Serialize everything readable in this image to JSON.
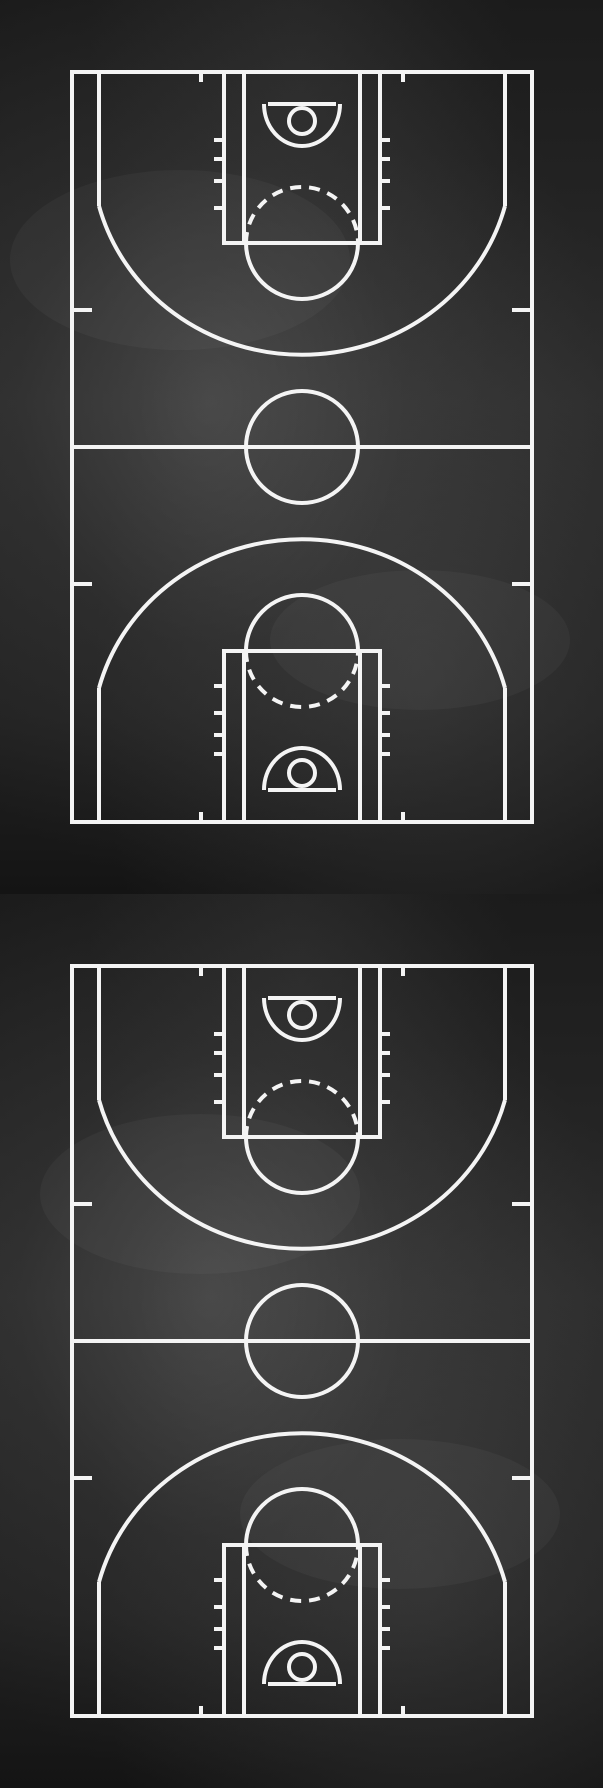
{
  "colors": {
    "chalkboard": "#2b2b2b",
    "chalk_line": "#f4f4f4"
  },
  "panels": [
    {
      "name": "court-panel-top",
      "icon": "basketball-court-diagram"
    },
    {
      "name": "court-panel-bottom",
      "icon": "basketball-court-diagram"
    }
  ]
}
